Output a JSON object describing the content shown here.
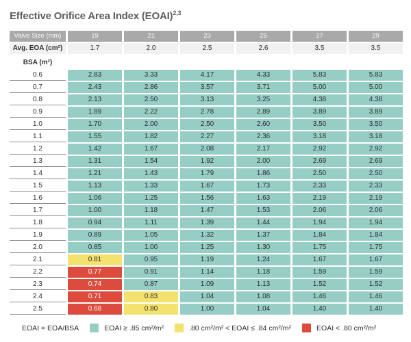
{
  "title": {
    "main": "Effective Orifice Area Index (EOAI)",
    "superscript": "2,3"
  },
  "colors": {
    "teal": "#96CEC5",
    "yellow": "#F4E26E",
    "red": "#DC4B3B",
    "header_gray": "#A9A9A9",
    "row_light": "#F1F1F2"
  },
  "chart_data": {
    "type": "table",
    "title": "Effective Orifice Area Index (EOAI)",
    "title_superscript": "2,3",
    "columns_header": "Valve Size (mm)",
    "valve_sizes": [
      "19",
      "21",
      "23",
      "25",
      "27",
      "29"
    ],
    "avg_eoa_label": "Avg. EOA (cm²)",
    "avg_eoa": [
      "1.7",
      "2.0",
      "2.5",
      "2.6",
      "3.5",
      "3.5"
    ],
    "row_header": "BSA (m²)",
    "level_meaning": {
      "g": "EOAI >= .85",
      "y": ".80 < EOAI <= .84",
      "r": "EOAI < .80"
    },
    "rows": [
      {
        "bsa": "0.6",
        "values": [
          "2.83",
          "3.33",
          "4.17",
          "4.33",
          "5.83",
          "5.83"
        ]
      },
      {
        "bsa": "0.7",
        "values": [
          "2.43",
          "2.86",
          "3.57",
          "3.71",
          "5.00",
          "5.00"
        ]
      },
      {
        "bsa": "0.8",
        "values": [
          "2.13",
          "2.50",
          "3.13",
          "3.25",
          "4.38",
          "4.38"
        ]
      },
      {
        "bsa": "0.9",
        "values": [
          "1.89",
          "2.22",
          "2.78",
          "2.89",
          "3.89",
          "3.89"
        ]
      },
      {
        "bsa": "1.0",
        "values": [
          "1.70",
          "2.00",
          "2.50",
          "2.60",
          "3.50",
          "3.50"
        ]
      },
      {
        "bsa": "1.1",
        "values": [
          "1.55",
          "1.82",
          "2.27",
          "2.36",
          "3.18",
          "3.18"
        ]
      },
      {
        "bsa": "1.2",
        "values": [
          "1.42",
          "1.67",
          "2.08",
          "2.17",
          "2.92",
          "2.92"
        ]
      },
      {
        "bsa": "1.3",
        "values": [
          "1.31",
          "1.54",
          "1.92",
          "2.00",
          "2.69",
          "2.69"
        ]
      },
      {
        "bsa": "1.4",
        "values": [
          "1.21",
          "1.43",
          "1.79",
          "1.86",
          "2.50",
          "2.50"
        ]
      },
      {
        "bsa": "1.5",
        "values": [
          "1.13",
          "1.33",
          "1.67",
          "1.73",
          "2.33",
          "2.33"
        ]
      },
      {
        "bsa": "1.6",
        "values": [
          "1.06",
          "1.25",
          "1.56",
          "1.63",
          "2.19",
          "2.19"
        ]
      },
      {
        "bsa": "1.7",
        "values": [
          "1.00",
          "1.18",
          "1.47",
          "1.53",
          "2.06",
          "2.06"
        ]
      },
      {
        "bsa": "1.8",
        "values": [
          "0.94",
          "1.11",
          "1.39",
          "1.44",
          "1.94",
          "1.94"
        ]
      },
      {
        "bsa": "1.9",
        "values": [
          "0.89",
          "1.05",
          "1.32",
          "1.37",
          "1.84",
          "1.84"
        ]
      },
      {
        "bsa": "2.0",
        "values": [
          "0.85",
          "1.00",
          "1.25",
          "1.30",
          "1.75",
          "1.75"
        ]
      },
      {
        "bsa": "2.1",
        "values": [
          "0.81",
          "0.95",
          "1.19",
          "1.24",
          "1.67",
          "1.67"
        ],
        "levels": [
          "y",
          "g",
          "g",
          "g",
          "g",
          "g"
        ]
      },
      {
        "bsa": "2.2",
        "values": [
          "0.77",
          "0.91",
          "1.14",
          "1.18",
          "1.59",
          "1.59"
        ],
        "levels": [
          "r",
          "g",
          "g",
          "g",
          "g",
          "g"
        ]
      },
      {
        "bsa": "2.3",
        "values": [
          "0.74",
          "0.87",
          "1.09",
          "1.13",
          "1.52",
          "1.52"
        ],
        "levels": [
          "r",
          "g",
          "g",
          "g",
          "g",
          "g"
        ]
      },
      {
        "bsa": "2.4",
        "values": [
          "0.71",
          "0.83",
          "1.04",
          "1.08",
          "1.46",
          "1.46"
        ],
        "levels": [
          "r",
          "y",
          "g",
          "g",
          "g",
          "g"
        ]
      },
      {
        "bsa": "2.5",
        "values": [
          "0.68",
          "0.80",
          "1.00",
          "1.04",
          "1.40",
          "1.40"
        ],
        "levels": [
          "r",
          "y",
          "g",
          "g",
          "g",
          "g"
        ]
      }
    ]
  },
  "legend": {
    "formula": "EOAI = EOA/BSA",
    "items": [
      {
        "level": "teal",
        "label": "EOAI ≥ .85 cm²/m²"
      },
      {
        "level": "yellow",
        "label": ".80 cm²/m² < EOAI ≤ .84 cm²/m²"
      },
      {
        "level": "red",
        "label": "EOAI < .80 cm²/m²"
      }
    ]
  }
}
